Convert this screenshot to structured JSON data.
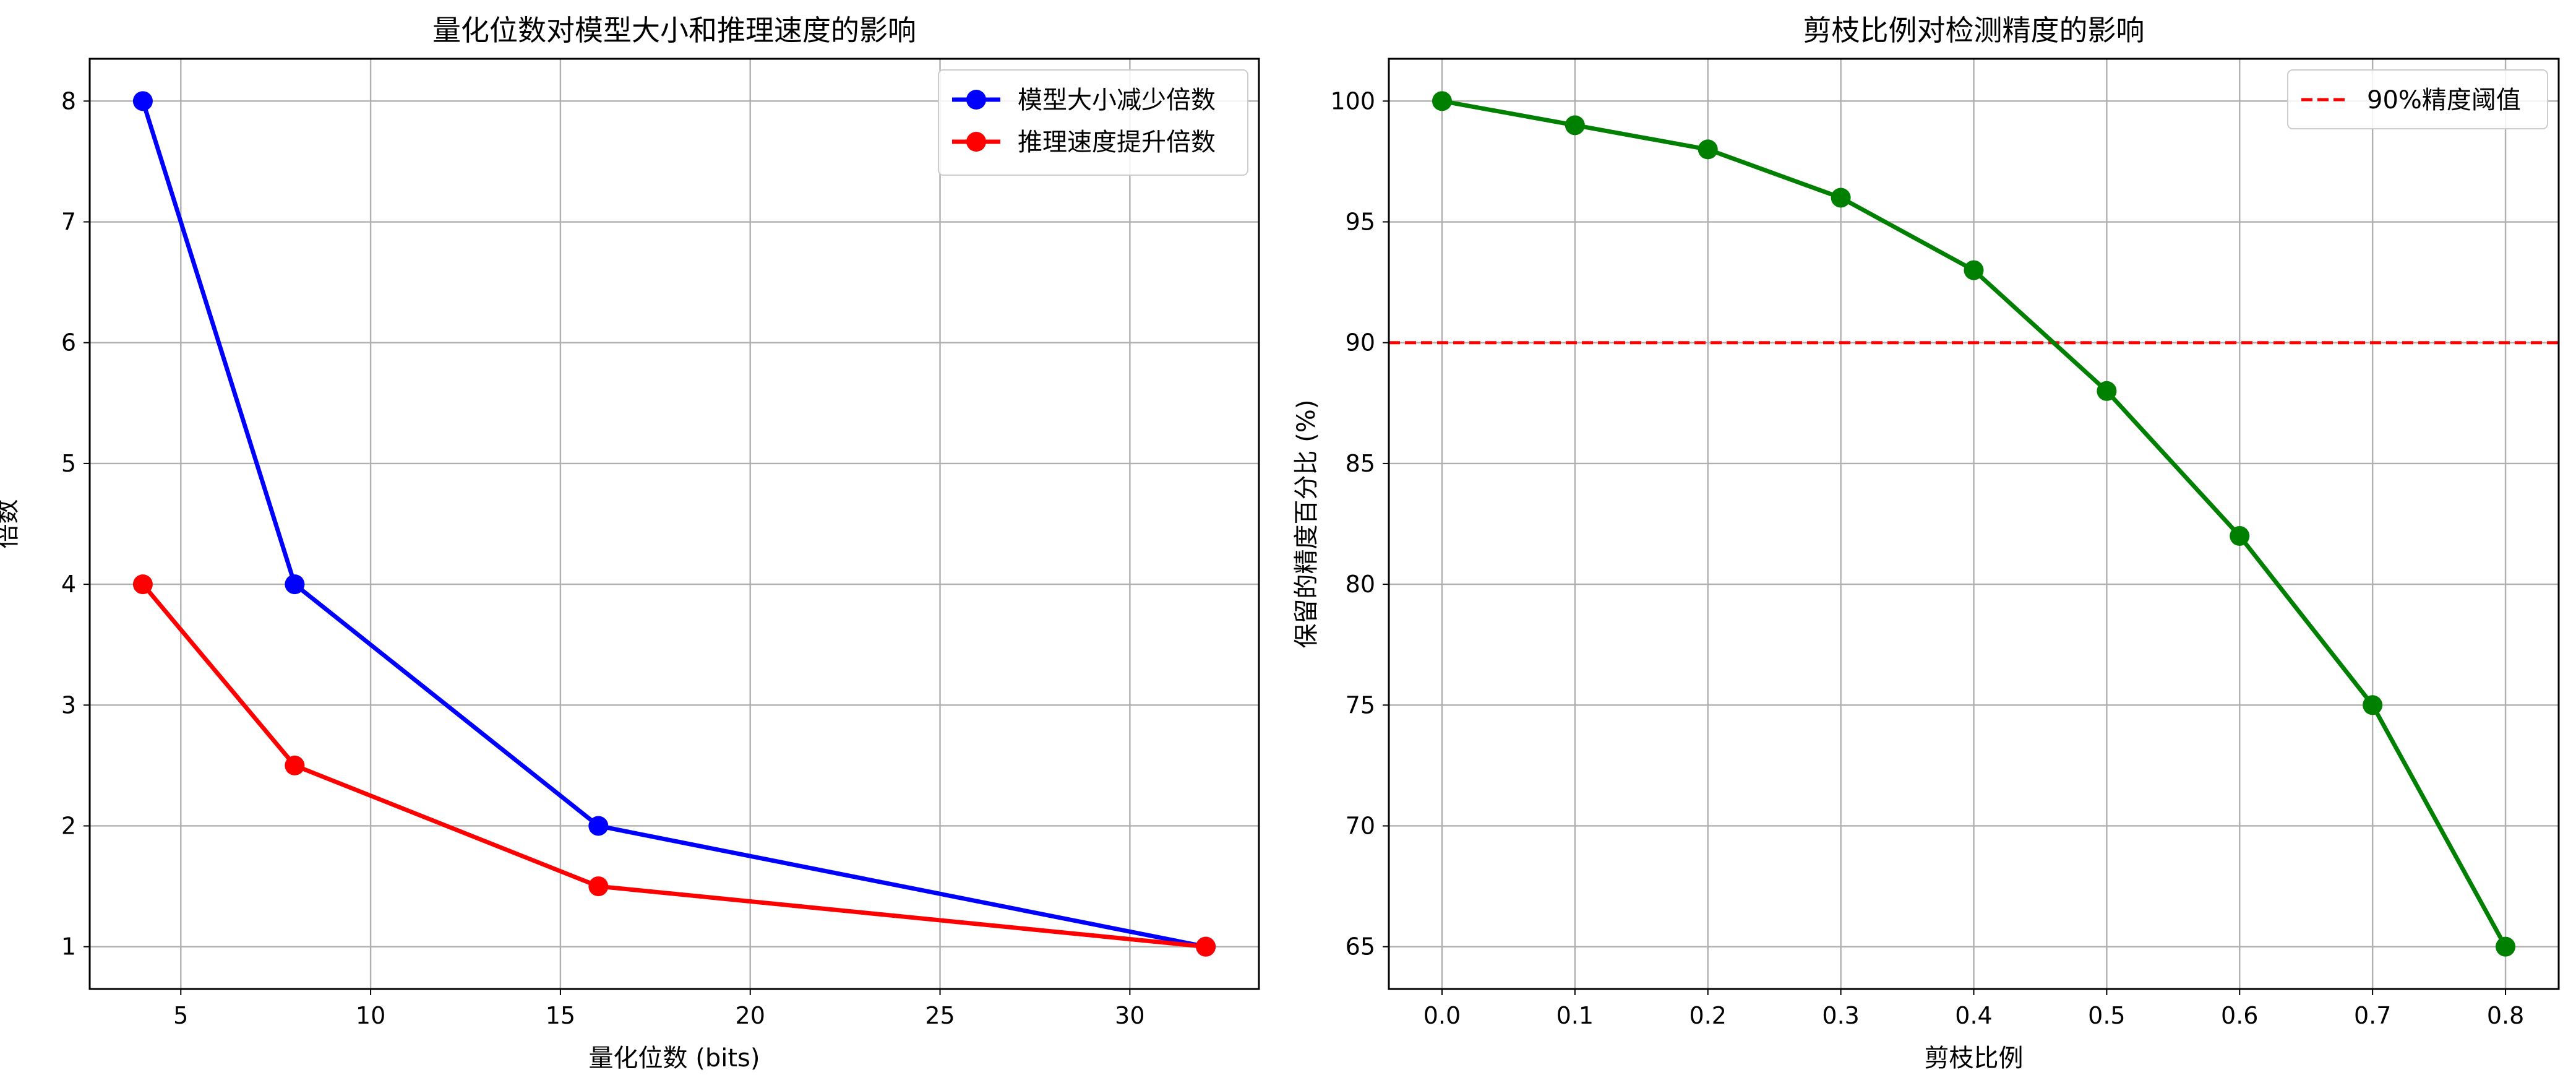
{
  "chart_data": [
    {
      "type": "line",
      "title": "量化位数对模型大小和推理速度的影响",
      "xlabel": "量化位数 (bits)",
      "ylabel": "倍数",
      "xlim": [
        2.6,
        33.4
      ],
      "ylim": [
        0.65,
        8.35
      ],
      "xticks": [
        5,
        10,
        15,
        20,
        25,
        30
      ],
      "yticks": [
        1,
        2,
        3,
        4,
        5,
        6,
        7,
        8
      ],
      "grid": true,
      "legend_position": "top-right",
      "x": [
        4,
        8,
        16,
        32
      ],
      "series": [
        {
          "name": "模型大小减少倍数",
          "values": [
            8,
            4,
            2,
            1
          ],
          "color": "#0000ff"
        },
        {
          "name": "推理速度提升倍数",
          "values": [
            4,
            2.5,
            1.5,
            1
          ],
          "color": "#ff0000"
        }
      ]
    },
    {
      "type": "line",
      "title": "剪枝比例对检测精度的影响",
      "xlabel": "剪枝比例",
      "ylabel": "保留的精度百分比 (%)",
      "xlim": [
        -0.04,
        0.84
      ],
      "ylim": [
        63.25,
        101.75
      ],
      "xticks": [
        0.0,
        0.1,
        0.2,
        0.3,
        0.4,
        0.5,
        0.6,
        0.7,
        0.8
      ],
      "yticks": [
        65,
        70,
        75,
        80,
        85,
        90,
        95,
        100
      ],
      "grid": true,
      "legend_position": "top-right",
      "x": [
        0.0,
        0.1,
        0.2,
        0.3,
        0.4,
        0.5,
        0.6,
        0.7,
        0.8
      ],
      "series": [
        {
          "values": [
            100,
            99,
            98,
            96,
            93,
            88,
            82,
            75,
            65
          ],
          "color": "#008000"
        }
      ],
      "reference_lines": [
        {
          "name": "90%精度阈值",
          "y": 90,
          "color": "#ff0000",
          "style": "dashed"
        }
      ]
    }
  ]
}
